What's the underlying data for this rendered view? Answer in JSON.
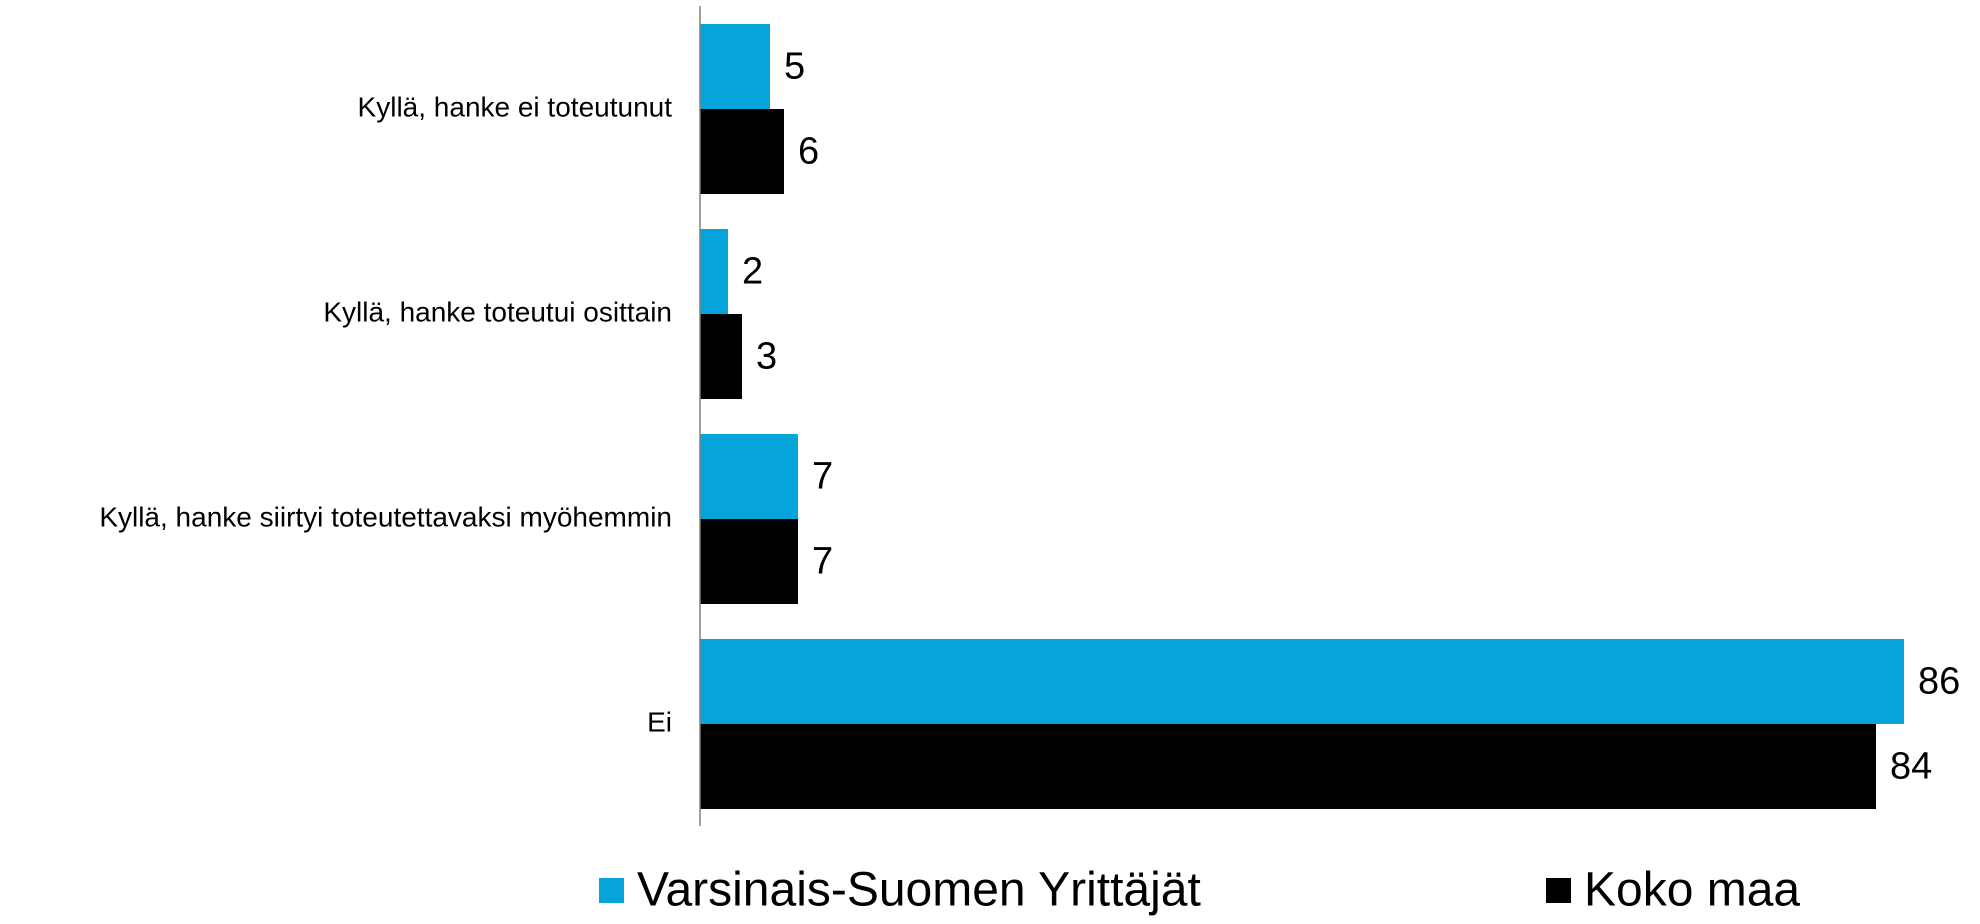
{
  "chart_data": {
    "type": "barh",
    "categories": [
      "Kyllä, hanke ei toteutunut",
      "Kyllä, hanke toteutui osittain",
      "Kyllä, hanke siirtyi toteutettavaksi myöhemmin",
      "Ei"
    ],
    "series": [
      {
        "name": "Varsinais-Suomen Yrittäjät",
        "color": "#05a4db",
        "values": [
          5,
          2,
          7,
          86
        ]
      },
      {
        "name": "Koko maa",
        "color": "#000000",
        "values": [
          6,
          3,
          7,
          84
        ]
      }
    ],
    "xlim": [
      0,
      90
    ]
  }
}
